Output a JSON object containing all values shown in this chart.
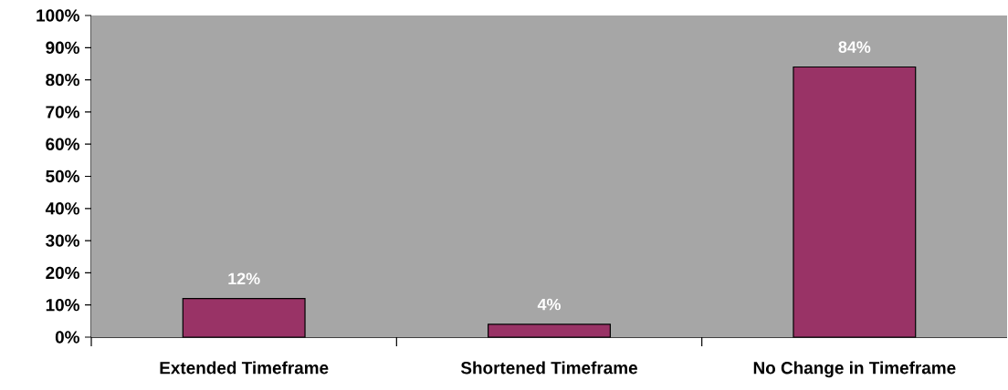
{
  "chart_data": {
    "type": "bar",
    "categories": [
      "Extended Timeframe",
      "Shortened Timeframe",
      "No Change in Timeframe"
    ],
    "values": [
      12,
      4,
      84
    ],
    "value_labels": [
      "12%",
      "4%",
      "84%"
    ],
    "color": "#993366",
    "ylim": [
      0,
      100
    ],
    "yticks": [
      {
        "value": 0,
        "label": "0%"
      },
      {
        "value": 10,
        "label": "10%"
      },
      {
        "value": 20,
        "label": "20%"
      },
      {
        "value": 30,
        "label": "30%"
      },
      {
        "value": 40,
        "label": "40%"
      },
      {
        "value": 50,
        "label": "50%"
      },
      {
        "value": 60,
        "label": "60%"
      },
      {
        "value": 70,
        "label": "70%"
      },
      {
        "value": 80,
        "label": "80%"
      },
      {
        "value": 90,
        "label": "90%"
      },
      {
        "value": 100,
        "label": "100%"
      }
    ],
    "grid": false
  }
}
